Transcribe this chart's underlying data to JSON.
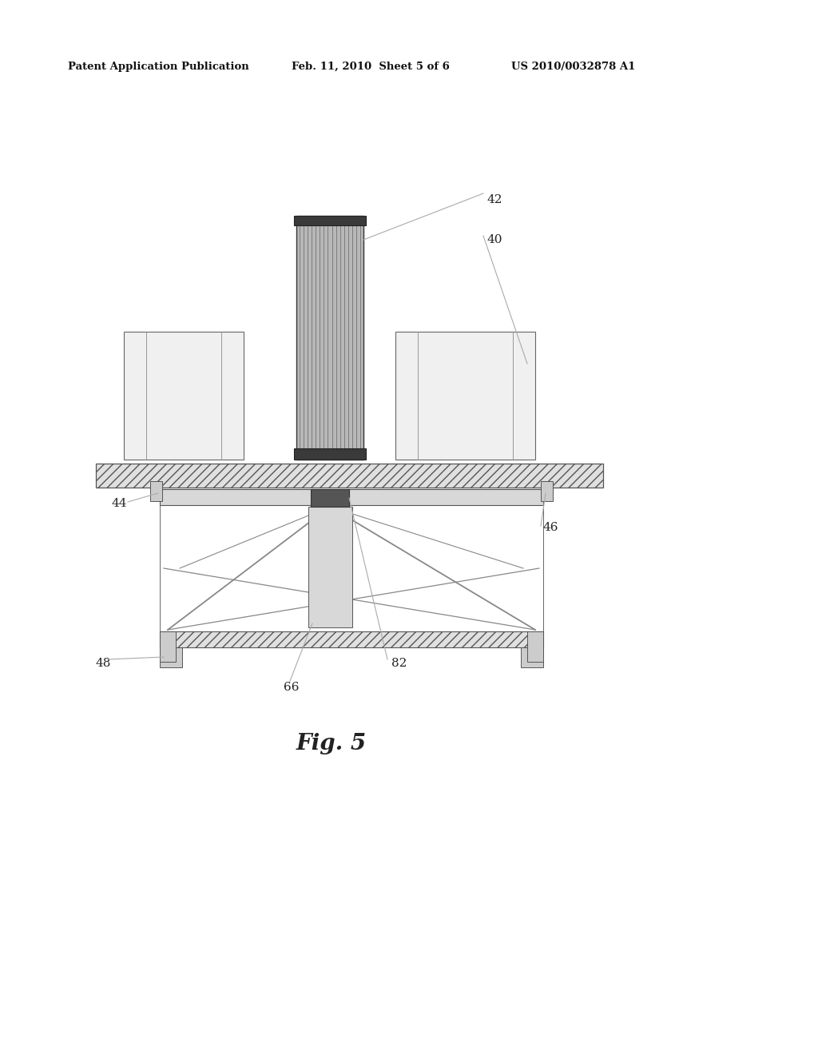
{
  "bg_color": "#ffffff",
  "header_text": "Patent Application Publication",
  "header_date": "Feb. 11, 2010  Sheet 5 of 6",
  "header_patent": "US 2010/0032878 A1",
  "fig_label": "Fig. 5",
  "line_color": "#aaaaaa",
  "strut_color": "#888888",
  "edge_color": "#555555",
  "dark_color": "#444444",
  "label_fs": 11
}
